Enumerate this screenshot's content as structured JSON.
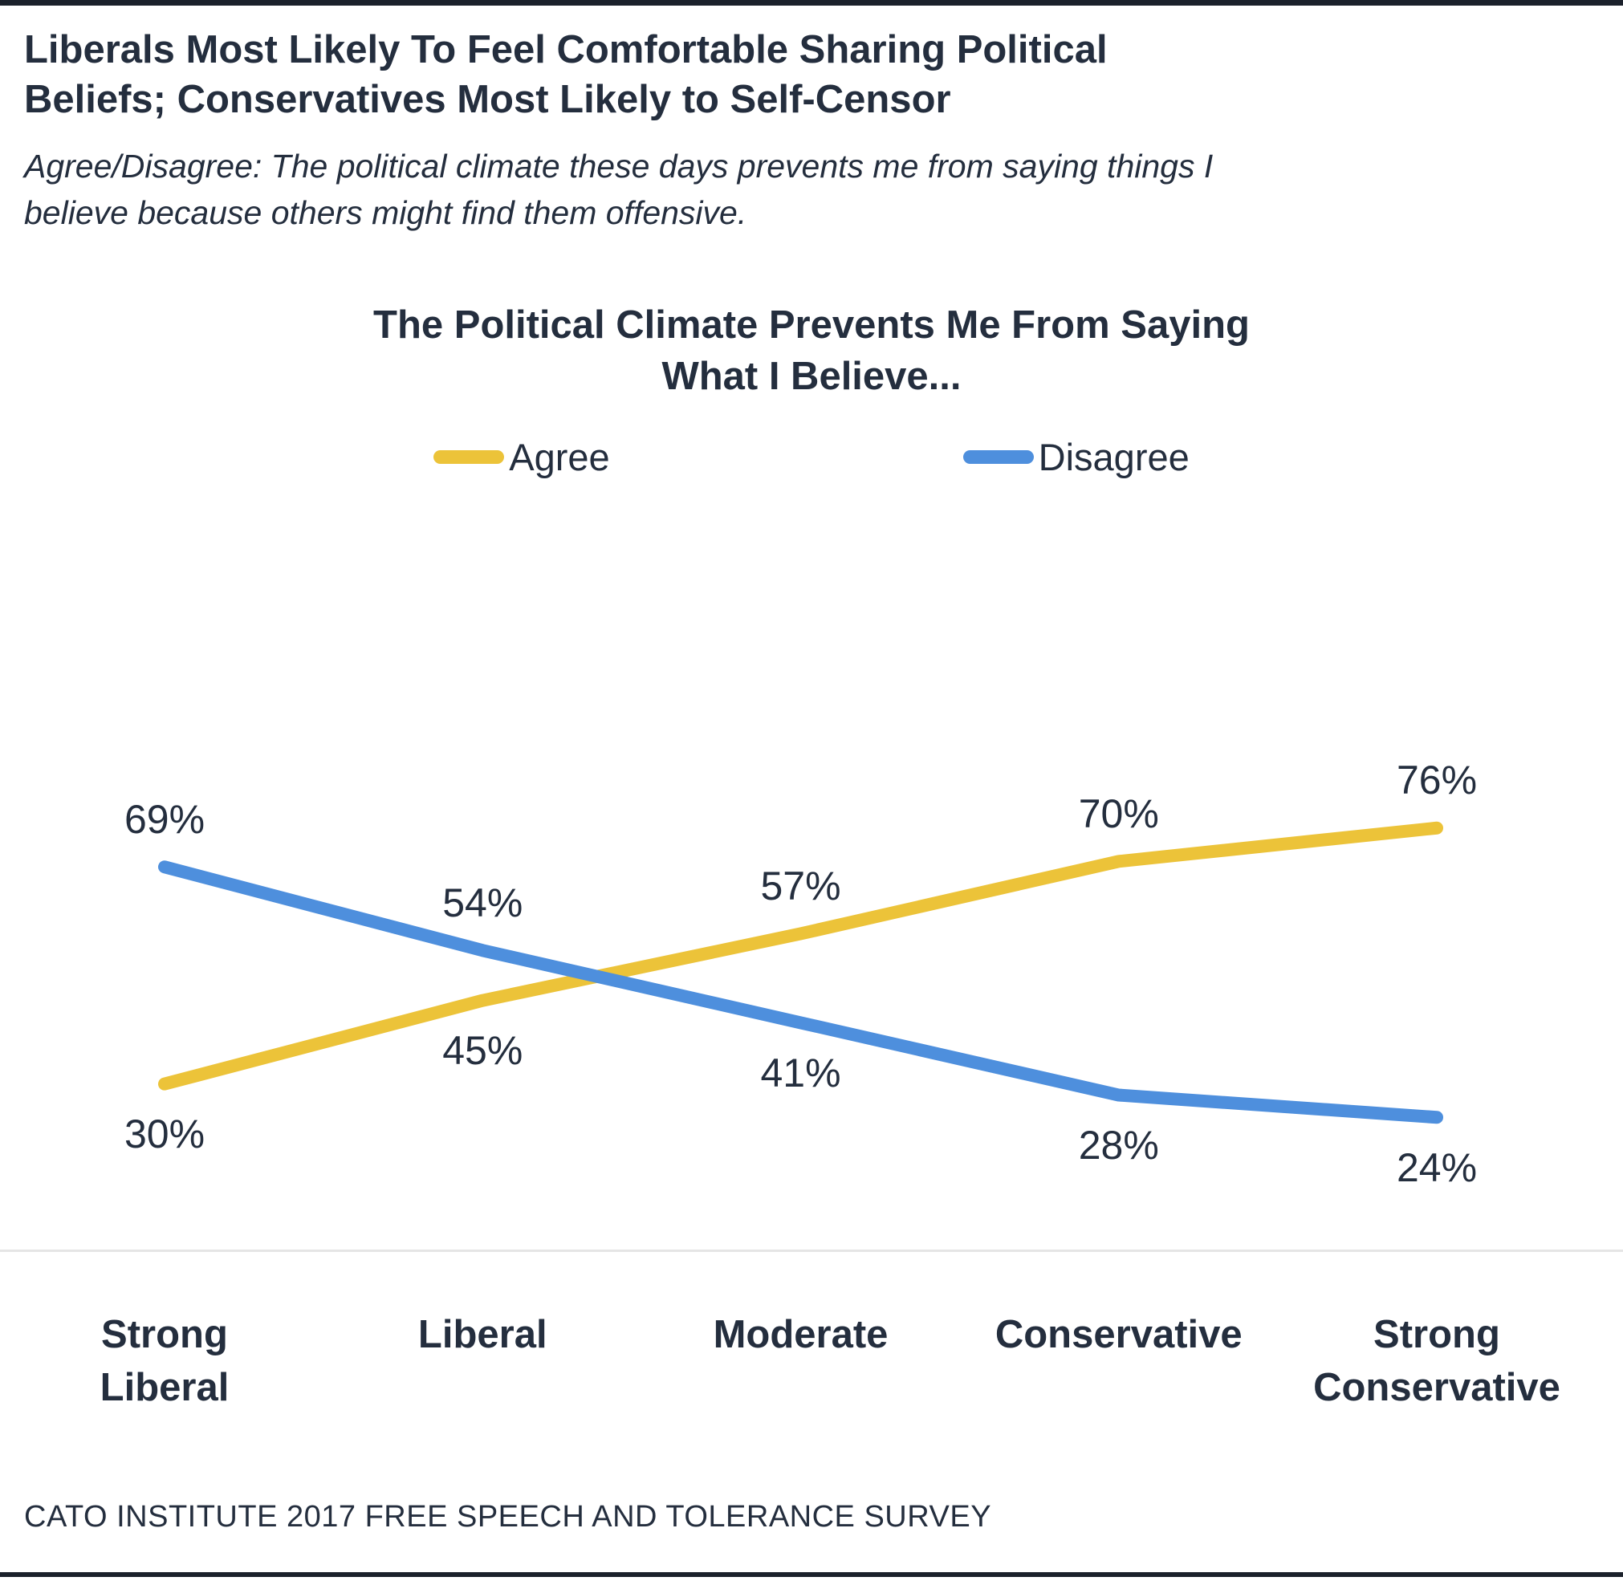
{
  "page": {
    "headline": "Liberals Most Likely To Feel Comfortable Sharing Political\nBeliefs; Conservatives Most Likely to Self-Censor",
    "subtitle": "Agree/Disagree: The political climate these days prevents me from saying things I\nbelieve because others might find them offensive.",
    "source": "CATO INSTITUTE 2017 FREE SPEECH AND TOLERANCE SURVEY"
  },
  "chart_data": {
    "type": "line",
    "title": "The Political Climate Prevents Me From Saying\nWhat I Believe...",
    "categories": [
      "Strong\nLiberal",
      "Liberal",
      "Moderate",
      "Conservative",
      "Strong\nConservative"
    ],
    "series": [
      {
        "name": "Agree",
        "color": "#ECC339",
        "values": [
          30,
          45,
          57,
          70,
          76
        ]
      },
      {
        "name": "Disagree",
        "color": "#4E8FDD",
        "values": [
          69,
          54,
          41,
          28,
          24
        ]
      }
    ],
    "value_suffix": "%",
    "ylim": [
      20,
      80
    ],
    "legend_position": "top",
    "grid": false,
    "xlabel": "",
    "ylabel": ""
  },
  "colors": {
    "text": "#242E3E",
    "rule": "#1B212B",
    "axis_line": "#E5E5E5",
    "agree": "#ECC339",
    "disagree": "#4E8FDD"
  }
}
